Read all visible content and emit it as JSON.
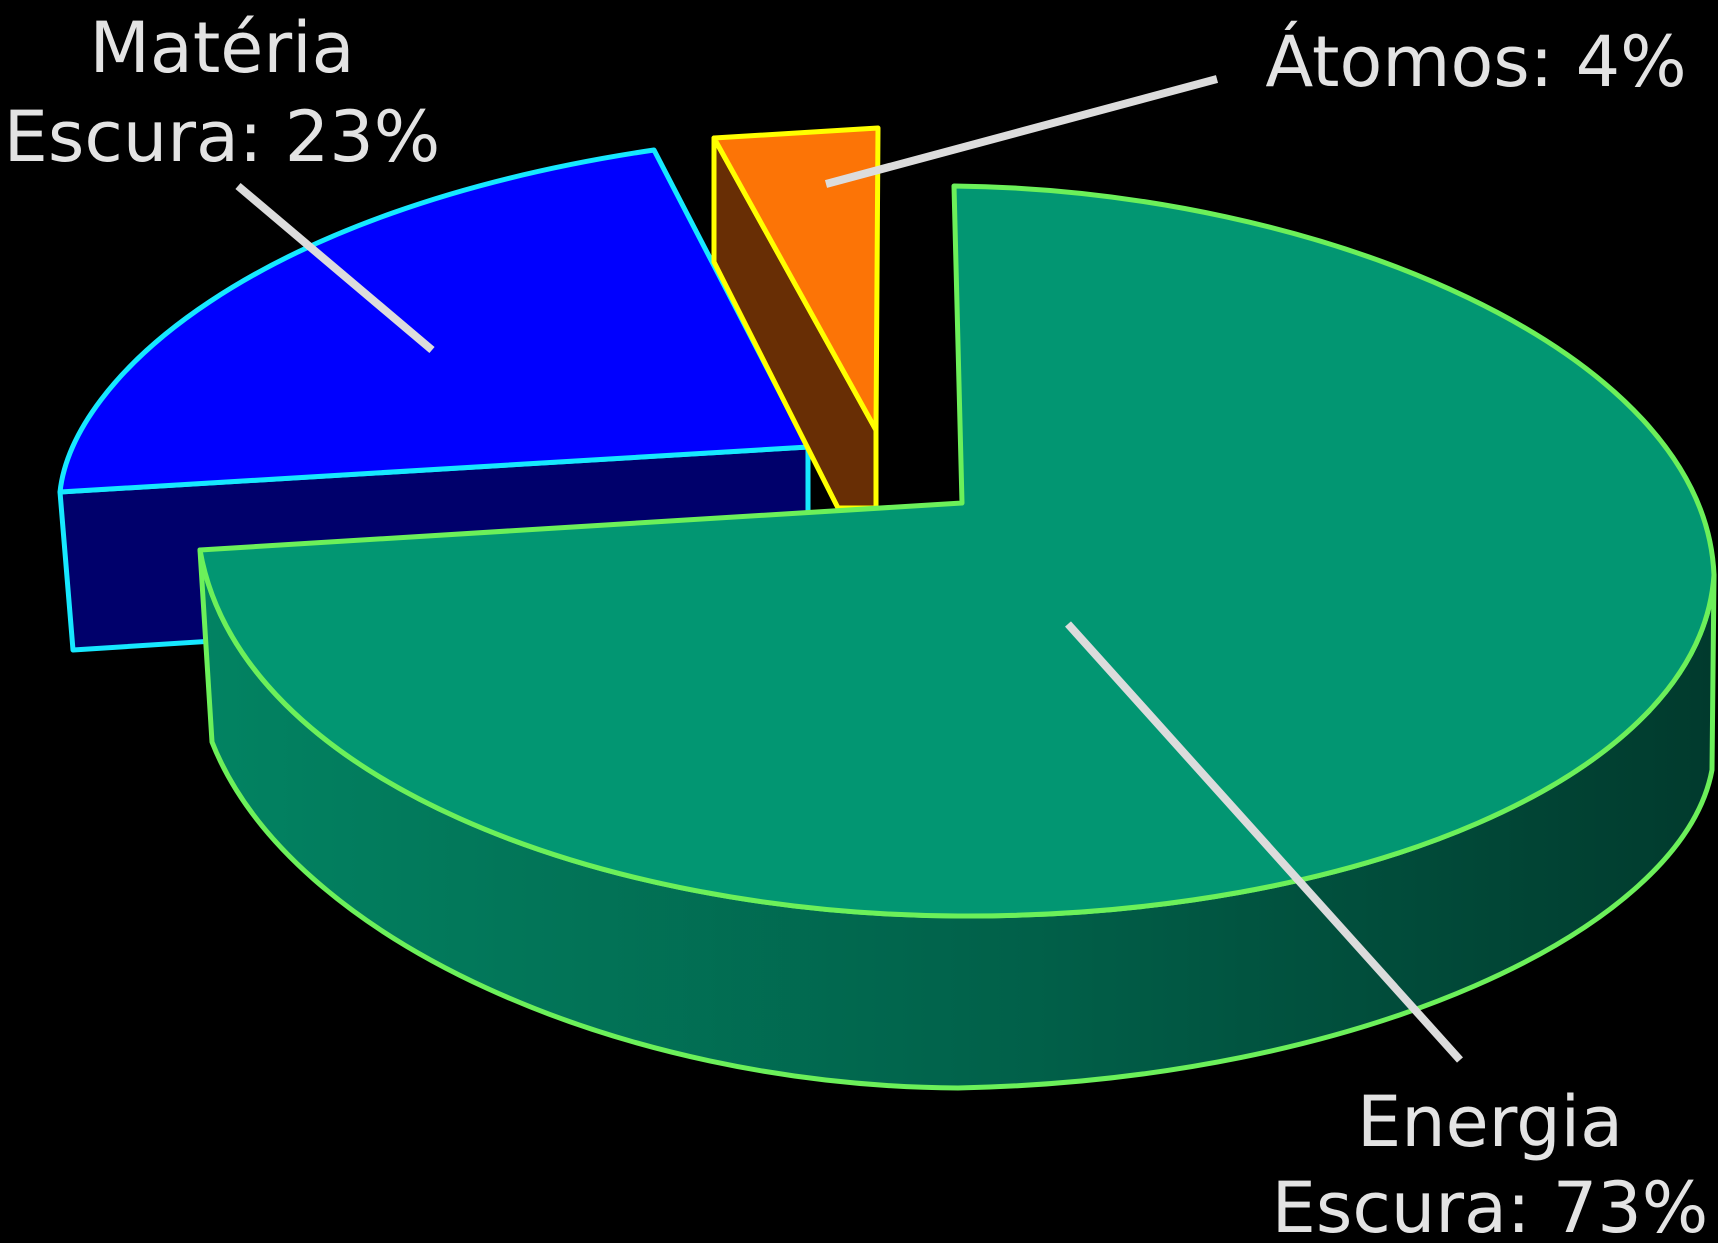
{
  "chart_data": {
    "type": "pie",
    "style": "3d-exploded",
    "background": "#000000",
    "title": "",
    "slices": [
      {
        "key": "energia",
        "label_lines": [
          "Energia",
          "Escura: 73%"
        ],
        "value": 73,
        "top_color": "#029672",
        "side_color": "#01694f",
        "outline_color": "#6cf05a"
      },
      {
        "key": "materia",
        "label_lines": [
          "Matéria",
          "Escura: 23%"
        ],
        "value": 23,
        "top_color": "#0000ff",
        "side_color": "#00006b",
        "outline_color": "#16e8ff"
      },
      {
        "key": "atomos",
        "label_lines": [
          "Átomos: 4%"
        ],
        "value": 4,
        "top_color": "#fc7406",
        "side_color": "#682e05",
        "outline_color": "#ffff00"
      }
    ],
    "leader_line_color": "#dcdcdc"
  }
}
